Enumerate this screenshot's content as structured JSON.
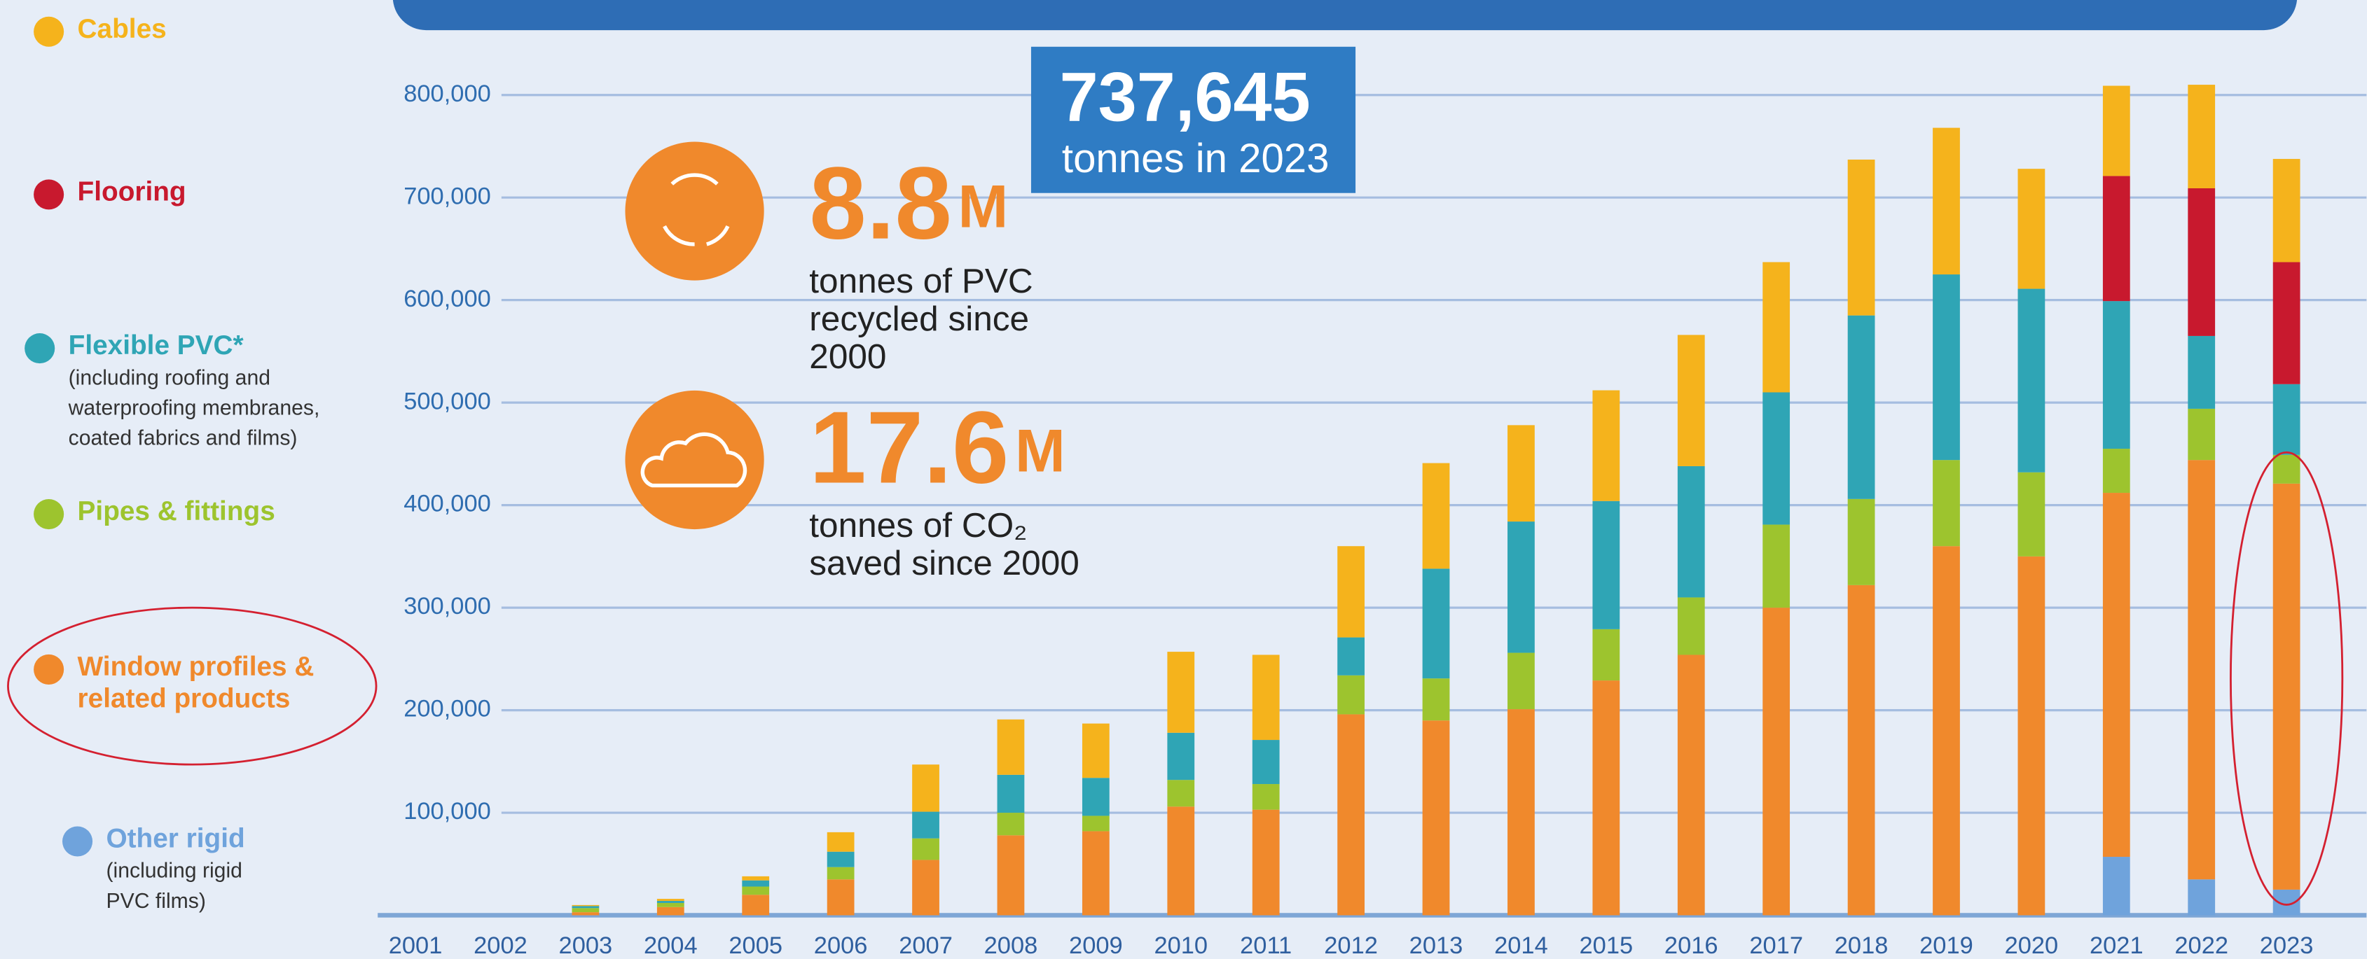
{
  "chart_data": {
    "type": "stacked_bar",
    "categories": [
      "2001",
      "2002",
      "2003",
      "2004",
      "2005",
      "2006",
      "2007",
      "2008",
      "2009",
      "2010",
      "2011",
      "2012",
      "2013",
      "2014",
      "2015",
      "2016",
      "2017",
      "2018",
      "2019",
      "2020",
      "2021",
      "2022",
      "2023"
    ],
    "series": [
      {
        "name": "Other rigid",
        "note": "(including rigid PVC films)",
        "color": "#6fa3dc",
        "values": [
          0,
          0,
          0,
          0,
          0,
          0,
          0,
          0,
          0,
          0,
          0,
          0,
          0,
          0,
          0,
          0,
          0,
          0,
          0,
          0,
          57000,
          35000,
          25000
        ]
      },
      {
        "name": "Window profiles & related products",
        "color": "#f0892c",
        "values": [
          0,
          0,
          3000,
          8000,
          20000,
          35000,
          54000,
          78000,
          82000,
          106000,
          103000,
          196000,
          190000,
          201000,
          229000,
          254000,
          300000,
          322000,
          360000,
          350000,
          355000,
          409000,
          396000
        ]
      },
      {
        "name": "Pipes & fittings",
        "color": "#9dc42e",
        "values": [
          0,
          0,
          4000,
          4000,
          8000,
          12000,
          21000,
          22000,
          15000,
          26000,
          25000,
          38000,
          41000,
          55000,
          50000,
          56000,
          81000,
          84000,
          84000,
          82000,
          43000,
          50000,
          28000
        ]
      },
      {
        "name": "Flexible PVC*",
        "note": "(including roofing and waterproofing membranes, coated fabrics and films)",
        "color": "#2fa5b5",
        "values": [
          0,
          0,
          2000,
          2000,
          6000,
          15000,
          26000,
          37000,
          37000,
          46000,
          43000,
          37000,
          107000,
          128000,
          125000,
          128000,
          129000,
          179000,
          181000,
          179000,
          144000,
          71000,
          69000
        ]
      },
      {
        "name": "Flooring",
        "color": "#c8192e",
        "values": [
          0,
          0,
          0,
          0,
          0,
          0,
          0,
          0,
          0,
          0,
          0,
          0,
          0,
          0,
          0,
          0,
          0,
          0,
          0,
          0,
          122000,
          144000,
          119000
        ]
      },
      {
        "name": "Cables",
        "color": "#f5b31c",
        "values": [
          0,
          0,
          1000,
          2000,
          4000,
          19000,
          46000,
          54000,
          53000,
          79000,
          83000,
          89000,
          103000,
          94000,
          108000,
          128000,
          127000,
          152000,
          143000,
          117000,
          88000,
          101000,
          100645
        ]
      }
    ],
    "ylim": [
      0,
      860000
    ],
    "yticks": [
      {
        "value": 100000,
        "label": "100,000"
      },
      {
        "value": 200000,
        "label": "200,000"
      },
      {
        "value": 300000,
        "label": "300,000"
      },
      {
        "value": 400000,
        "label": "400,000"
      },
      {
        "value": 500000,
        "label": "500,000"
      },
      {
        "value": 600000,
        "label": "600,000"
      },
      {
        "value": 700000,
        "label": "700,000"
      },
      {
        "value": 800000,
        "label": "800,000"
      }
    ],
    "grid": true,
    "highlight": {
      "value": "737,645",
      "label": "tonnes in 2023"
    },
    "stats": [
      {
        "value": "8.8",
        "unit": "M",
        "lines": [
          "tonnes of PVC",
          "recycled since",
          "2000"
        ]
      },
      {
        "value": "17.6",
        "unit": "M",
        "lines": [
          "tonnes of CO₂",
          "saved since 2000"
        ]
      }
    ]
  }
}
